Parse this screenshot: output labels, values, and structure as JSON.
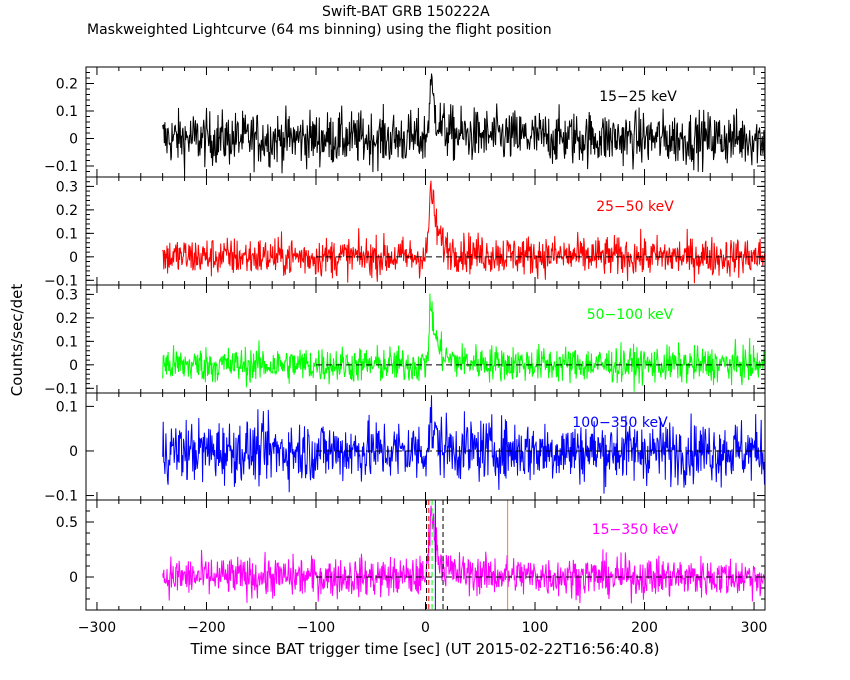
{
  "chart_data": {
    "type": "line",
    "title": "Swift-BAT GRB 150222A",
    "subtitle": "Maskweighted Lightcurve (64 ms binning) using the flight position",
    "xlabel": "Time since BAT trigger time [sec] (UT 2015-02-22T16:56:40.8)",
    "ylabel": "Counts/sec/det",
    "xlim": [
      -310,
      310
    ],
    "xticks": [
      -300,
      -200,
      -100,
      0,
      100,
      200,
      300
    ],
    "data_start": -240,
    "dashed_zero_from": -100,
    "grid": false,
    "panels": [
      {
        "name": "15-25 keV",
        "label": "15−25 keV",
        "color": "#000000",
        "ylim": [
          -0.14,
          0.26
        ],
        "yticks": [
          -0.1,
          0,
          0.1,
          0.2
        ],
        "yticklabels": [
          "−0.1",
          "0",
          "0.1",
          "0.2"
        ],
        "noise_amp": 0.07,
        "peak": {
          "t": 5,
          "height": 0.18
        },
        "tail": 0.02,
        "dashed_zero": false
      },
      {
        "name": "25-50 keV",
        "label": "25−50 keV",
        "color": "#ff0000",
        "ylim": [
          -0.12,
          0.34
        ],
        "yticks": [
          -0.1,
          0,
          0.1,
          0.2,
          0.3
        ],
        "yticklabels": [
          "−0.1",
          "0",
          "0.1",
          "0.2",
          "0.3"
        ],
        "noise_amp": 0.06,
        "peak": {
          "t": 5,
          "height": 0.28
        },
        "tail": 0.03,
        "dashed_zero": true
      },
      {
        "name": "50-100 keV",
        "label": "50−100 keV",
        "color": "#00ff00",
        "ylim": [
          -0.12,
          0.34
        ],
        "yticks": [
          -0.1,
          0,
          0.1,
          0.2,
          0.3
        ],
        "yticklabels": [
          "−0.1",
          "0",
          "0.1",
          "0.2",
          "0.3"
        ],
        "noise_amp": 0.055,
        "peak": {
          "t": 5,
          "height": 0.24
        },
        "tail": 0.02,
        "dashed_zero": true
      },
      {
        "name": "100-350 keV",
        "label": "100−350 keV",
        "color": "#0000ff",
        "ylim": [
          -0.11,
          0.13
        ],
        "yticks": [
          -0.1,
          0,
          0.1
        ],
        "yticklabels": [
          "−0.1",
          "0",
          "0.1"
        ],
        "noise_amp": 0.05,
        "peak": {
          "t": 5,
          "height": 0.06
        },
        "tail": 0.005,
        "dashed_zero": true
      },
      {
        "name": "15-350 keV",
        "label": "15−350 keV",
        "color": "#ff00ff",
        "ylim": [
          -0.3,
          0.7
        ],
        "yticks": [
          0,
          0.5
        ],
        "yticklabels": [
          "0",
          "0.5"
        ],
        "noise_amp": 0.13,
        "peak": {
          "t": 5,
          "height": 0.62
        },
        "tail": 0.05,
        "dashed_zero": true,
        "vlines": [
          {
            "t": 1,
            "color": "#000000",
            "style": "dashed"
          },
          {
            "t": 3,
            "color": "#ff0000",
            "style": "dashed"
          },
          {
            "t": 6,
            "color": "#00ff00",
            "style": "dashed"
          },
          {
            "t": 9,
            "color": "#0000ff",
            "style": "solid"
          },
          {
            "t": 16,
            "color": "#000000",
            "style": "dashed"
          },
          {
            "t": 75,
            "color": "#ff8000",
            "style": "solid"
          }
        ]
      }
    ]
  }
}
